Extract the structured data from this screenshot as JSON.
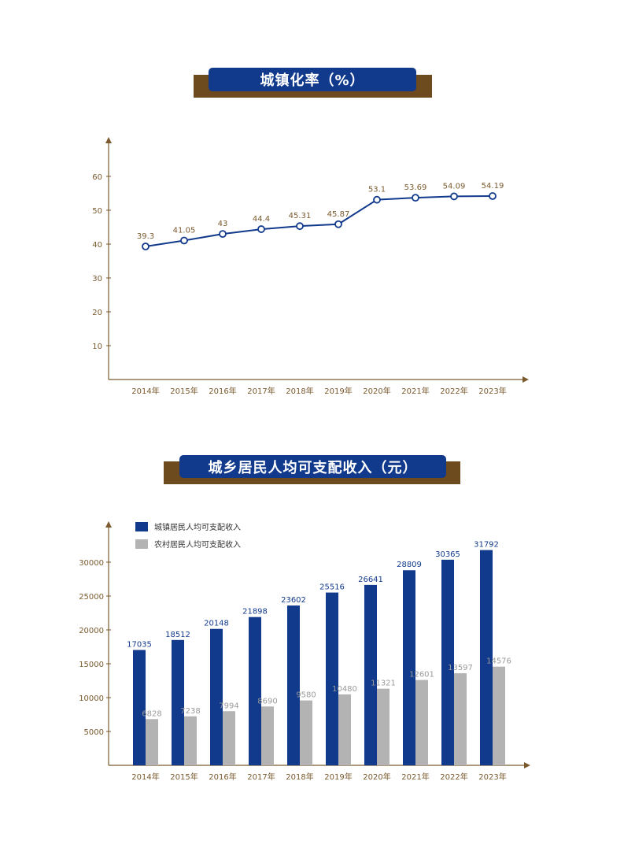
{
  "colors": {
    "navy": "#123a8c",
    "brown": "#6e4a1f",
    "axis": "#7a5a2e",
    "label_brown": "#7a5a2e",
    "gray_bar": "#b3b3b3"
  },
  "titles": {
    "chart1": "城镇化率（%）",
    "chart2": "城乡居民人均可支配收入（元）"
  },
  "chart_data": [
    {
      "type": "line",
      "title": "城镇化率（%）",
      "categories": [
        "2014年",
        "2015年",
        "2016年",
        "2017年",
        "2018年",
        "2019年",
        "2020年",
        "2021年",
        "2022年",
        "2023年"
      ],
      "values": [
        39.3,
        41.05,
        43,
        44.4,
        45.31,
        45.87,
        53.1,
        53.69,
        54.09,
        54.19
      ],
      "value_labels": [
        "39.3",
        "41.05",
        "43",
        "44.4",
        "45.31",
        "45.87",
        "53.1",
        "53.69",
        "54.09",
        "54.19"
      ],
      "yticks": [
        "10",
        "20",
        "30",
        "40",
        "50",
        "60"
      ],
      "ylim": [
        0,
        60
      ],
      "grid": false
    },
    {
      "type": "bar",
      "title": "城乡居民人均可支配收入（元）",
      "categories": [
        "2014年",
        "2015年",
        "2016年",
        "2017年",
        "2018年",
        "2019年",
        "2020年",
        "2021年",
        "2022年",
        "2023年"
      ],
      "series": [
        {
          "name": "城镇居民人均可支配收入",
          "values": [
            17035,
            18512,
            20148,
            21898,
            23602,
            25516,
            26641,
            28809,
            30365,
            31792
          ]
        },
        {
          "name": "农村居民人均可支配收入",
          "values": [
            6828,
            7238,
            7994,
            8690,
            9580,
            10480,
            11321,
            12601,
            13597,
            14576
          ]
        }
      ],
      "yticks": [
        "5000",
        "10000",
        "15000",
        "20000",
        "25000",
        "30000"
      ],
      "ylim": [
        0,
        30000
      ],
      "legend_position": "top-left",
      "grid": false
    }
  ]
}
